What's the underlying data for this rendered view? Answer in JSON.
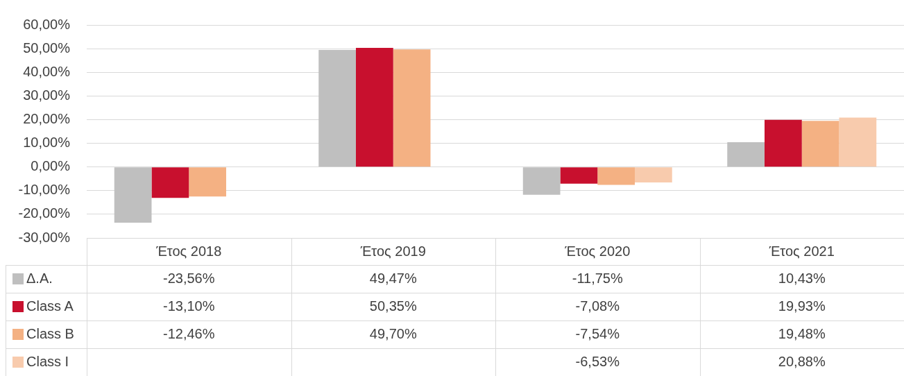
{
  "chart_data": {
    "type": "bar",
    "categories": [
      "Έτος 2018",
      "Έτος 2019",
      "Έτος 2020",
      "Έτος 2021"
    ],
    "series": [
      {
        "name": "Δ.Α.",
        "color": "#bfbfbf",
        "values": [
          -23.56,
          49.47,
          -11.75,
          10.43
        ],
        "value_labels": [
          "-23,56%",
          "49,47%",
          "-11,75%",
          "10,43%"
        ]
      },
      {
        "name": "Class A",
        "color": "#c8102e",
        "values": [
          -13.1,
          50.35,
          -7.08,
          19.93
        ],
        "value_labels": [
          "-13,10%",
          "50,35%",
          "-7,08%",
          "19,93%"
        ]
      },
      {
        "name": "Class B",
        "color": "#f4b183",
        "values": [
          -12.46,
          49.7,
          -7.54,
          19.48
        ],
        "value_labels": [
          "-12,46%",
          "49,70%",
          "-7,54%",
          "19,48%"
        ]
      },
      {
        "name": "Class I",
        "color": "#f8cbad",
        "values": [
          null,
          null,
          -6.53,
          20.88
        ],
        "value_labels": [
          null,
          null,
          "-6,53%",
          "20,88%"
        ]
      }
    ],
    "ylim": [
      -30,
      60
    ],
    "yticks": [
      {
        "value": -30,
        "label": "-30,00%"
      },
      {
        "value": -20,
        "label": "-20,00%"
      },
      {
        "value": -10,
        "label": "-10,00%"
      },
      {
        "value": 0,
        "label": "0,00%"
      },
      {
        "value": 10,
        "label": "10,00%"
      },
      {
        "value": 20,
        "label": "20,00%"
      },
      {
        "value": 30,
        "label": "30,00%"
      },
      {
        "value": 40,
        "label": "40,00%"
      },
      {
        "value": 50,
        "label": "50,00%"
      },
      {
        "value": 60,
        "label": "60,00%"
      }
    ],
    "grid": "y",
    "legend": "bottom left"
  }
}
